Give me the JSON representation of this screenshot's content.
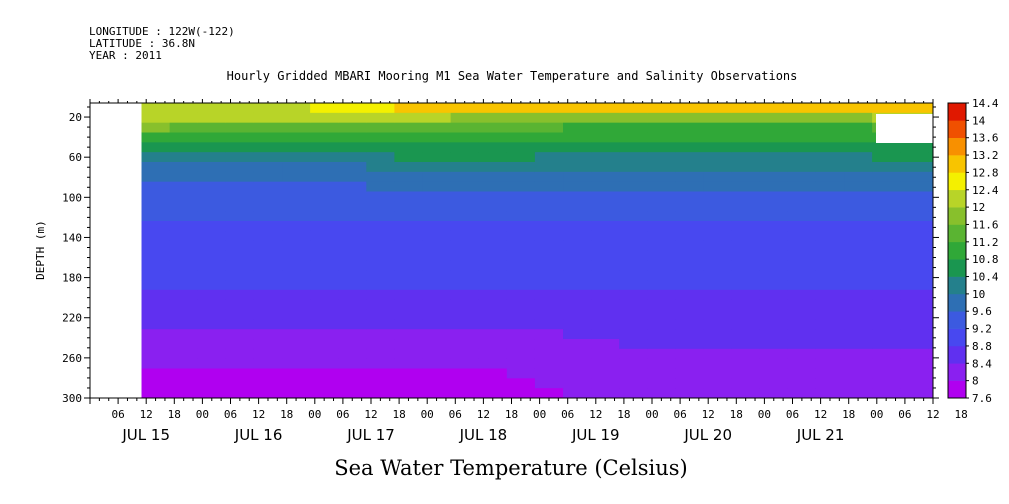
{
  "header": {
    "longitude": "LONGITUDE : 122W(-122)",
    "latitude": "LATITUDE : 36.8N",
    "year": "YEAR : 2011"
  },
  "chart_data": {
    "type": "heatmap",
    "title": "Hourly Gridded MBARI Mooring M1 Sea Water Temperature and Salinity Observations",
    "xlabel": "",
    "ylabel": "DEPTH (m)",
    "colorbar_label": "Sea Water Temperature (Celsius)",
    "x_hour_ticks": [
      "06",
      "12",
      "18",
      "00",
      "06",
      "12",
      "18",
      "00",
      "06",
      "12",
      "18",
      "00",
      "06",
      "12",
      "18",
      "00",
      "06",
      "12",
      "18",
      "00",
      "06",
      "12",
      "18",
      "00",
      "06",
      "12",
      "18",
      "00",
      "06",
      "12",
      "18"
    ],
    "x_day_labels": [
      "JUL 15",
      "JUL 16",
      "JUL 17",
      "JUL 18",
      "JUL 19",
      "JUL 20",
      "JUL 21"
    ],
    "y_ticks": [
      20,
      60,
      100,
      140,
      180,
      220,
      260,
      300
    ],
    "ylim": [
      300,
      6
    ],
    "colorbar_levels": [
      7.6,
      8,
      8.4,
      8.8,
      9.2,
      9.6,
      10,
      10.4,
      10.8,
      11.2,
      11.6,
      12,
      12.4,
      12.8,
      13.2,
      13.6,
      14,
      14.4
    ],
    "colorbar_tick_labels": [
      "7.6",
      "8",
      "8.4",
      "8.8",
      "9.2",
      "9.6",
      "10",
      "10.4",
      "10.8",
      "11.2",
      "11.6",
      "12",
      "12.4",
      "12.8",
      "13.2",
      "13.6",
      "14",
      "14.4"
    ],
    "colors": [
      "#b000f0",
      "#8a20f0",
      "#6030f0",
      "#4848f0",
      "#3c5ae0",
      "#2e6fb4",
      "#24808c",
      "#1a9650",
      "#30a838",
      "#5ab432",
      "#88c02c",
      "#b8d428",
      "#f4f000",
      "#f8c400",
      "#f89000",
      "#f05000",
      "#e01800",
      "#b00000"
    ],
    "data_start": "JUL 15 11:00",
    "profiles": [
      {
        "time": "JUL 15 11:00",
        "temps": [
          12.3,
          12.1,
          11.6,
          11.0,
          10.6,
          10.1,
          9.8,
          9.6,
          9.4,
          9.3,
          9.25,
          9.2,
          9.15,
          9.1,
          9.0,
          8.95,
          8.9,
          8.85,
          8.8,
          8.7,
          8.6,
          8.5,
          8.4,
          8.3,
          8.2,
          8.1,
          8.0,
          7.9,
          7.8,
          7.7
        ]
      },
      {
        "time": "JUL 16 20:00",
        "temps": [
          12.4,
          12.1,
          11.3,
          11.0,
          10.7,
          10.2,
          9.9,
          9.7,
          9.5,
          9.35,
          9.25,
          9.2,
          9.15,
          9.1,
          9.0,
          8.95,
          8.9,
          8.85,
          8.8,
          8.7,
          8.6,
          8.5,
          8.4,
          8.3,
          8.2,
          8.1,
          8.0,
          7.9,
          7.85,
          7.75
        ]
      },
      {
        "time": "JUL 18 03:00",
        "temps": [
          13.0,
          12.0,
          11.4,
          11.0,
          10.7,
          10.5,
          10.2,
          10.0,
          9.8,
          9.6,
          9.4,
          9.3,
          9.2,
          9.1,
          9.0,
          8.95,
          8.9,
          8.85,
          8.8,
          8.7,
          8.6,
          8.5,
          8.4,
          8.3,
          8.2,
          8.1,
          8.0,
          7.9,
          7.85,
          7.8
        ]
      },
      {
        "time": "JUL 19 12:00",
        "temps": [
          13.2,
          11.8,
          11.1,
          10.9,
          10.6,
          10.3,
          10.0,
          9.8,
          9.6,
          9.45,
          9.3,
          9.2,
          9.1,
          9.05,
          9.0,
          8.95,
          8.9,
          8.85,
          8.8,
          8.7,
          8.65,
          8.6,
          8.5,
          8.45,
          8.4,
          8.35,
          8.3,
          8.25,
          8.2,
          8.1
        ]
      },
      {
        "time": "JUL 21 22:00",
        "temps": [
          13.0,
          12.0,
          11.2,
          11.0,
          10.7,
          10.4,
          10.1,
          9.9,
          9.7,
          9.5,
          9.35,
          9.25,
          9.15,
          9.1,
          9.0,
          8.95,
          8.9,
          8.85,
          8.8,
          8.7,
          8.65,
          8.6,
          8.5,
          8.45,
          8.4,
          8.35,
          8.3,
          8.25,
          8.2,
          8.1
        ]
      }
    ],
    "grid": false,
    "legend": "right colorbar"
  }
}
